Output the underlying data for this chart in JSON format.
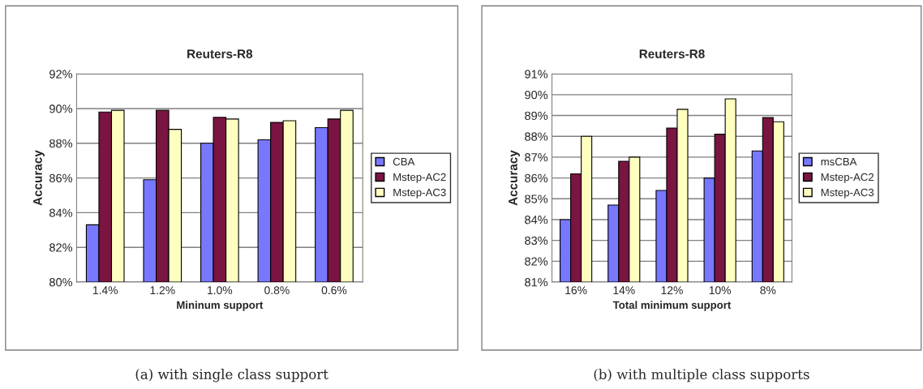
{
  "chart_data": [
    {
      "type": "bar",
      "title": "Reuters-R8",
      "xlabel": "Mininum support",
      "ylabel": "Accuracy",
      "categories": [
        "1.4%",
        "1.2%",
        "1.0%",
        "0.8%",
        "0.6%"
      ],
      "series": [
        {
          "name": "CBA",
          "color": "#7878ff",
          "values": [
            83.3,
            85.9,
            88.0,
            88.2,
            88.9
          ]
        },
        {
          "name": "Mstep-AC2",
          "color": "#7a1440",
          "values": [
            89.8,
            89.9,
            89.5,
            89.2,
            89.4
          ]
        },
        {
          "name": "Mstep-AC3",
          "color": "#ffffc0",
          "values": [
            89.9,
            88.8,
            89.4,
            89.3,
            89.9
          ]
        }
      ],
      "ylim": [
        80,
        92
      ],
      "yticks": [
        {
          "value": 80,
          "label": "80%"
        },
        {
          "value": 82,
          "label": "82%"
        },
        {
          "value": 84,
          "label": "84%"
        },
        {
          "value": 86,
          "label": "86%"
        },
        {
          "value": 88,
          "label": "88%"
        },
        {
          "value": 90,
          "label": "90%"
        },
        {
          "value": 92,
          "label": "92%"
        }
      ],
      "grid": "y",
      "legend": "right",
      "annotations": [
        "(a) with single class support"
      ]
    },
    {
      "type": "bar",
      "title": "Reuters-R8",
      "xlabel": "Total minimum support",
      "ylabel": "Accuracy",
      "categories": [
        "16%",
        "14%",
        "12%",
        "10%",
        "8%"
      ],
      "series": [
        {
          "name": "msCBA",
          "color": "#7878ff",
          "values": [
            84.0,
            84.7,
            85.4,
            86.0,
            87.3
          ]
        },
        {
          "name": "Mstep-AC2",
          "color": "#7a1440",
          "values": [
            86.2,
            86.8,
            88.4,
            88.1,
            88.9
          ]
        },
        {
          "name": "Mstep-AC3",
          "color": "#ffffc0",
          "values": [
            88.0,
            87.0,
            89.3,
            89.8,
            88.7
          ]
        }
      ],
      "ylim": [
        81,
        91
      ],
      "yticks": [
        {
          "value": 81,
          "label": "81%"
        },
        {
          "value": 82,
          "label": "82%"
        },
        {
          "value": 83,
          "label": "83%"
        },
        {
          "value": 84,
          "label": "84%"
        },
        {
          "value": 85,
          "label": "85%"
        },
        {
          "value": 86,
          "label": "86%"
        },
        {
          "value": 87,
          "label": "87%"
        },
        {
          "value": 88,
          "label": "88%"
        },
        {
          "value": 89,
          "label": "89%"
        },
        {
          "value": 90,
          "label": "90%"
        },
        {
          "value": 91,
          "label": "91%"
        }
      ],
      "grid": "y",
      "legend": "right",
      "annotations": [
        "(b) with multiple class supports"
      ]
    }
  ]
}
